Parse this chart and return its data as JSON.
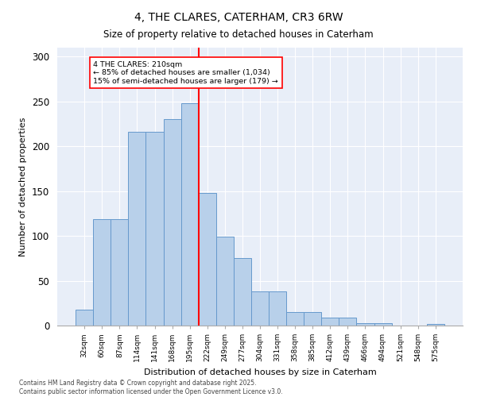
{
  "title": "4, THE CLARES, CATERHAM, CR3 6RW",
  "subtitle": "Size of property relative to detached houses in Caterham",
  "xlabel": "Distribution of detached houses by size in Caterham",
  "ylabel": "Number of detached properties",
  "bar_color": "#b8d0ea",
  "bar_edge_color": "#6699cc",
  "background_color": "#e8eef8",
  "categories": [
    "32sqm",
    "60sqm",
    "87sqm",
    "114sqm",
    "141sqm",
    "168sqm",
    "195sqm",
    "222sqm",
    "249sqm",
    "277sqm",
    "304sqm",
    "331sqm",
    "358sqm",
    "385sqm",
    "412sqm",
    "439sqm",
    "466sqm",
    "494sqm",
    "521sqm",
    "548sqm",
    "575sqm"
  ],
  "values": [
    18,
    119,
    119,
    216,
    216,
    230,
    248,
    148,
    99,
    75,
    38,
    38,
    15,
    15,
    9,
    9,
    3,
    3,
    0,
    0,
    2
  ],
  "vline_bin": 7,
  "annotation_line1": "4 THE CLARES: 210sqm",
  "annotation_line2": "← 85% of detached houses are smaller (1,034)",
  "annotation_line3": "15% of semi-detached houses are larger (179) →",
  "ylim": [
    0,
    310
  ],
  "yticks": [
    0,
    50,
    100,
    150,
    200,
    250,
    300
  ],
  "footer_line1": "Contains HM Land Registry data © Crown copyright and database right 2025.",
  "footer_line2": "Contains public sector information licensed under the Open Government Licence v3.0."
}
